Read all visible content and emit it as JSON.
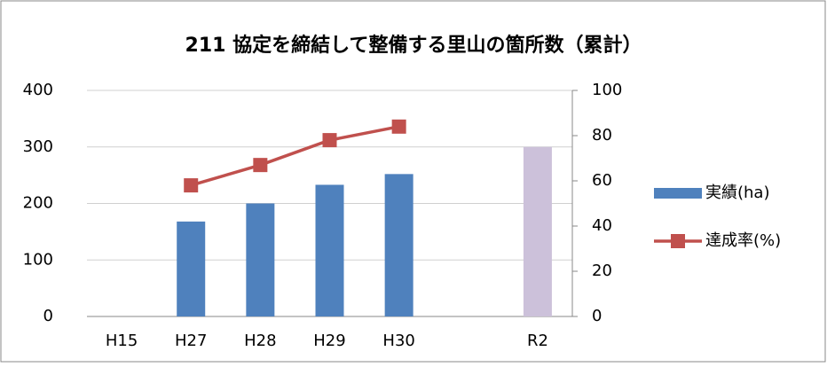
{
  "chart_data": {
    "type": "bar_line",
    "title": "211 協定を締結して整備する里山の箇所数（累計）",
    "categories": [
      "H15",
      "H27",
      "H28",
      "H29",
      "H30",
      null,
      "R2"
    ],
    "series": [
      {
        "name": "実績(ha)",
        "type": "bar",
        "axis": "y",
        "color": "#4f81bd",
        "point_colors": [
          "#4f81bd",
          "#4f81bd",
          "#4f81bd",
          "#4f81bd",
          "#4f81bd",
          "#4f81bd",
          "#ccc1da"
        ],
        "values": [
          null,
          168,
          200,
          233,
          252,
          null,
          300
        ]
      },
      {
        "name": "達成率(%)",
        "type": "line",
        "axis": "y2",
        "color": "#c0504d",
        "values": [
          null,
          58,
          67,
          78,
          84,
          null,
          null
        ]
      }
    ],
    "ylim": [
      0,
      400
    ],
    "yticks": [
      0,
      100,
      200,
      300,
      400
    ],
    "y2lim": [
      0,
      100
    ],
    "y2ticks": [
      0,
      20,
      40,
      60,
      80,
      100
    ],
    "grid": true,
    "legend": "right"
  }
}
